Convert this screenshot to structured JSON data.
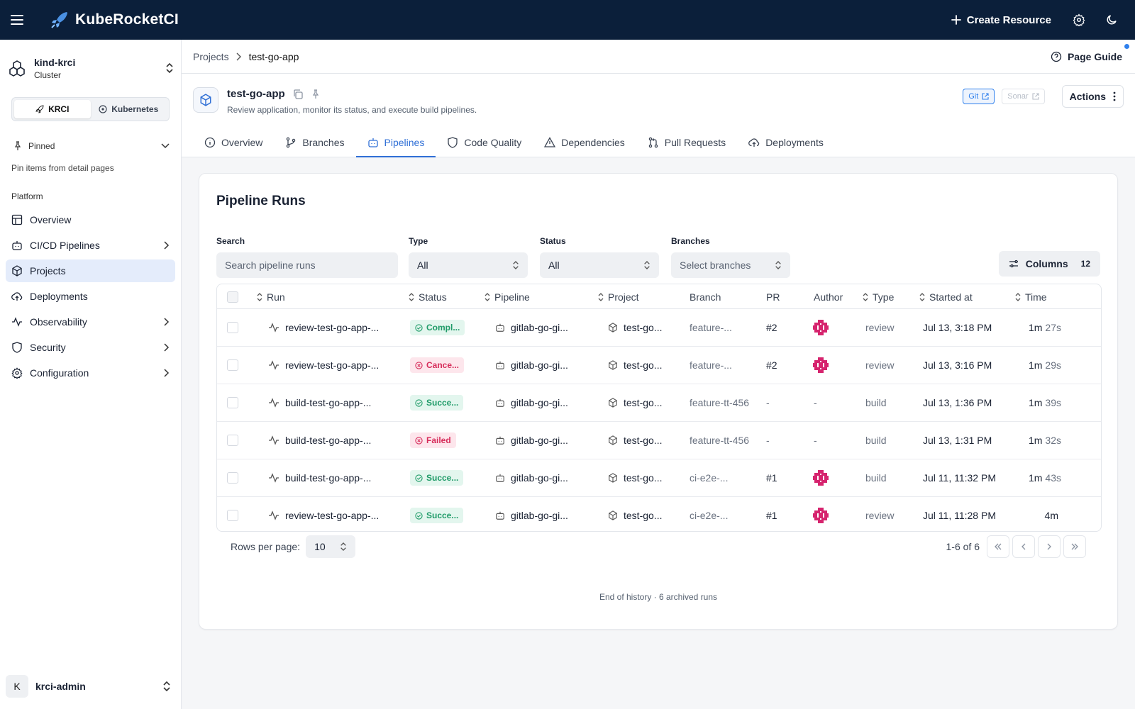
{
  "app": {
    "brand": "KubeRocketCI",
    "create_label": "Create Resource"
  },
  "sidebar": {
    "cluster_name": "kind-krci",
    "cluster_sub": "Cluster",
    "segments": [
      "KRCI",
      "Kubernetes"
    ],
    "pinned_label": "Pinned",
    "pin_hint": "Pin items from detail pages",
    "platform_label": "Platform",
    "items": [
      {
        "label": "Overview",
        "icon": "layout-icon",
        "has_children": false,
        "active": false
      },
      {
        "label": "CI/CD Pipelines",
        "icon": "bot-icon",
        "has_children": true,
        "active": false
      },
      {
        "label": "Projects",
        "icon": "box-icon",
        "has_children": false,
        "active": true
      },
      {
        "label": "Deployments",
        "icon": "cloud-upload-icon",
        "has_children": false,
        "active": false
      },
      {
        "label": "Observability",
        "icon": "activity-icon",
        "has_children": true,
        "active": false
      },
      {
        "label": "Security",
        "icon": "shield-icon",
        "has_children": true,
        "active": false
      },
      {
        "label": "Configuration",
        "icon": "gear-icon",
        "has_children": true,
        "active": false
      }
    ],
    "user": {
      "initial": "K",
      "name": "krci-admin"
    }
  },
  "breadcrumb": {
    "parent": "Projects",
    "current": "test-go-app"
  },
  "page_guide": "Page Guide",
  "project": {
    "name": "test-go-app",
    "description": "Review application, monitor its status, and execute build pipelines.",
    "git_label": "Git",
    "sonar_label": "Sonar",
    "actions_label": "Actions"
  },
  "tabs": [
    {
      "label": "Overview",
      "icon": "info-icon"
    },
    {
      "label": "Branches",
      "icon": "git-branch-icon"
    },
    {
      "label": "Pipelines",
      "icon": "bot-icon",
      "active": true
    },
    {
      "label": "Code Quality",
      "icon": "shield-icon"
    },
    {
      "label": "Dependencies",
      "icon": "warning-icon"
    },
    {
      "label": "Pull Requests",
      "icon": "git-pull-request-icon"
    },
    {
      "label": "Deployments",
      "icon": "cloud-upload-icon"
    }
  ],
  "pipeline_runs": {
    "title": "Pipeline Runs",
    "filters": {
      "search_label": "Search",
      "search_placeholder": "Search pipeline runs",
      "type_label": "Type",
      "type_value": "All",
      "status_label": "Status",
      "status_value": "All",
      "branches_label": "Branches",
      "branches_placeholder": "Select branches"
    },
    "columns_label": "Columns",
    "columns_count": "12",
    "headers": [
      "Run",
      "Status",
      "Pipeline",
      "Project",
      "Branch",
      "PR",
      "Author",
      "Type",
      "Started at",
      "Time"
    ],
    "rows": [
      {
        "run": "review-test-go-app-...",
        "status": "Compl...",
        "status_kind": "ok",
        "pipeline": "gitlab-go-gi...",
        "project": "test-go...",
        "branch": "feature-...",
        "pr": "#2",
        "author": "avatar",
        "type": "review",
        "started": "Jul 13, 3:18 PM",
        "time_min": "1m",
        "time_sec": "27s"
      },
      {
        "run": "review-test-go-app-...",
        "status": "Cance...",
        "status_kind": "bad",
        "pipeline": "gitlab-go-gi...",
        "project": "test-go...",
        "branch": "feature-...",
        "pr": "#2",
        "author": "avatar",
        "type": "review",
        "started": "Jul 13, 3:16 PM",
        "time_min": "1m",
        "time_sec": "29s"
      },
      {
        "run": "build-test-go-app-...",
        "status": "Succe...",
        "status_kind": "ok",
        "pipeline": "gitlab-go-gi...",
        "project": "test-go...",
        "branch": "feature-tt-456",
        "pr": "-",
        "author": "-",
        "type": "build",
        "started": "Jul 13, 1:36 PM",
        "time_min": "1m",
        "time_sec": "39s"
      },
      {
        "run": "build-test-go-app-...",
        "status": "Failed",
        "status_kind": "bad",
        "pipeline": "gitlab-go-gi...",
        "project": "test-go...",
        "branch": "feature-tt-456",
        "pr": "-",
        "author": "-",
        "type": "build",
        "started": "Jul 13, 1:31 PM",
        "time_min": "1m",
        "time_sec": "32s"
      },
      {
        "run": "build-test-go-app-...",
        "status": "Succe...",
        "status_kind": "ok",
        "pipeline": "gitlab-go-gi...",
        "project": "test-go...",
        "branch": "ci-e2e-...",
        "pr": "#1",
        "author": "avatar",
        "type": "build",
        "started": "Jul 11, 11:32 PM",
        "time_min": "1m",
        "time_sec": "43s"
      },
      {
        "run": "review-test-go-app-...",
        "status": "Succe...",
        "status_kind": "ok",
        "pipeline": "gitlab-go-gi...",
        "project": "test-go...",
        "branch": "ci-e2e-...",
        "pr": "#1",
        "author": "avatar",
        "type": "review",
        "started": "Jul 11, 11:28 PM",
        "time_min": "4m",
        "time_sec": ""
      }
    ],
    "pagination": {
      "rows_per_page_label": "Rows per page:",
      "rows_per_page": "10",
      "range": "1-6 of 6"
    },
    "history_note": "End of history · 6 archived runs"
  },
  "colors": {
    "topbar": "#0b1f3a",
    "accent": "#2f6fd6",
    "success": "#1f9b68",
    "danger": "#d72d5b",
    "avatar": "#d6246e"
  }
}
